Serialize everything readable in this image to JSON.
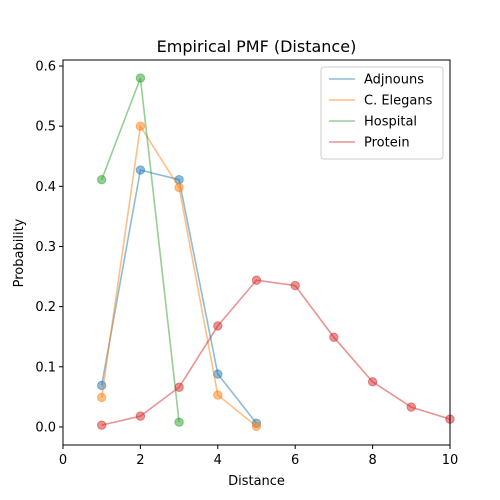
{
  "chart_data": {
    "type": "line",
    "title": "Empirical PMF (Distance)",
    "xlabel": "Distance",
    "ylabel": "Probability",
    "xlim": [
      0,
      10
    ],
    "ylim": [
      -0.03,
      0.61
    ],
    "xticks": [
      0,
      2,
      4,
      6,
      8,
      10
    ],
    "yticks": [
      0.0,
      0.1,
      0.2,
      0.3,
      0.4,
      0.5,
      0.6
    ],
    "grid": false,
    "legend": "top-right",
    "series": [
      {
        "name": "Adjnouns",
        "color": "#1f77b4",
        "x": [
          1,
          2,
          3,
          4,
          5
        ],
        "y": [
          0.069,
          0.427,
          0.411,
          0.088,
          0.006
        ]
      },
      {
        "name": "C. Elegans",
        "color": "#ff7f0e",
        "x": [
          1,
          2,
          3,
          4,
          5
        ],
        "y": [
          0.049,
          0.5,
          0.398,
          0.053,
          0.001
        ]
      },
      {
        "name": "Hospital",
        "color": "#2ca02c",
        "x": [
          1,
          2,
          3
        ],
        "y": [
          0.411,
          0.58,
          0.008
        ]
      },
      {
        "name": "Protein",
        "color": "#d62728",
        "x": [
          1,
          2,
          3,
          4,
          5,
          6,
          7,
          8,
          9,
          10
        ],
        "y": [
          0.003,
          0.018,
          0.066,
          0.168,
          0.244,
          0.235,
          0.149,
          0.075,
          0.033,
          0.013
        ]
      }
    ]
  }
}
